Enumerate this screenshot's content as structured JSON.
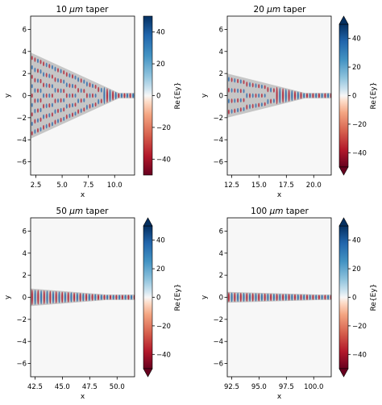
{
  "chart_data": [
    {
      "type": "heatmap",
      "title": "10 μm taper",
      "title_pre": "10 ",
      "title_unit": "μm",
      "title_post": " taper",
      "xlabel": "x",
      "ylabel": "y",
      "xlim": [
        2.0,
        11.9
      ],
      "ylim": [
        -7.2,
        7.2
      ],
      "xticks": [
        2.5,
        5.0,
        7.5,
        10.0
      ],
      "xtick_labels": [
        "2.5",
        "5.0",
        "7.5",
        "10.0"
      ],
      "yticks": [
        -6,
        -4,
        -2,
        0,
        2,
        4,
        6
      ],
      "ytick_labels": [
        "−6",
        "−4",
        "−2",
        "0",
        "2",
        "4",
        "6"
      ],
      "colorbar": {
        "label": "Re{Ey}",
        "ticks": [
          40,
          20,
          0,
          -20,
          -40
        ],
        "tick_labels": [
          "40",
          "20",
          "0",
          "−20",
          "−40"
        ],
        "extend": false
      },
      "taper": {
        "x_start": 2.0,
        "x_end": 10.4,
        "half_width_start": 3.9,
        "half_width_end": 0.25,
        "wavelength": 0.55
      }
    },
    {
      "type": "heatmap",
      "title": "20 μm taper",
      "title_pre": "20 ",
      "title_unit": "μm",
      "title_post": " taper",
      "xlabel": "x",
      "ylabel": "y",
      "xlim": [
        12.1,
        21.6
      ],
      "ylim": [
        -7.2,
        7.2
      ],
      "xticks": [
        12.5,
        15.0,
        17.5,
        20.0
      ],
      "xtick_labels": [
        "12.5",
        "15.0",
        "17.5",
        "20.0"
      ],
      "yticks": [
        -6,
        -4,
        -2,
        0,
        2,
        4,
        6
      ],
      "ytick_labels": [
        "−6",
        "−4",
        "−2",
        "0",
        "2",
        "4",
        "6"
      ],
      "colorbar": {
        "label": "Re{Ey}",
        "ticks": [
          40,
          20,
          0,
          -20,
          -40
        ],
        "tick_labels": [
          "40",
          "20",
          "0",
          "−20",
          "−40"
        ],
        "extend": true
      },
      "taper": {
        "x_start": 12.1,
        "x_end": 19.2,
        "half_width_start": 2.0,
        "half_width_end": 0.25,
        "wavelength": 0.55
      }
    },
    {
      "type": "heatmap",
      "title": "50 μm taper",
      "title_pre": "50 ",
      "title_unit": "μm",
      "title_post": " taper",
      "xlabel": "x",
      "ylabel": "y",
      "xlim": [
        42.1,
        51.6
      ],
      "ylim": [
        -7.2,
        7.2
      ],
      "xticks": [
        42.5,
        45.0,
        47.5,
        50.0
      ],
      "xtick_labels": [
        "42.5",
        "45.0",
        "47.5",
        "50.0"
      ],
      "yticks": [
        -6,
        -4,
        -2,
        0,
        2,
        4,
        6
      ],
      "ytick_labels": [
        "−6",
        "−4",
        "−2",
        "0",
        "2",
        "4",
        "6"
      ],
      "colorbar": {
        "label": "Re{Ey}",
        "ticks": [
          40,
          20,
          0,
          -20,
          -40
        ],
        "tick_labels": [
          "40",
          "20",
          "0",
          "−20",
          "−40"
        ],
        "extend": true
      },
      "taper": {
        "x_start": 42.1,
        "x_end": 49.0,
        "half_width_start": 0.8,
        "half_width_end": 0.25,
        "wavelength": 0.55
      }
    },
    {
      "type": "heatmap",
      "title": "100 μm taper",
      "title_pre": "100 ",
      "title_unit": "μm",
      "title_post": " taper",
      "xlabel": "x",
      "ylabel": "y",
      "xlim": [
        92.1,
        101.6
      ],
      "ylim": [
        -7.2,
        7.2
      ],
      "xticks": [
        92.5,
        95.0,
        97.5,
        100.0
      ],
      "xtick_labels": [
        "92.5",
        "95.0",
        "97.5",
        "100.0"
      ],
      "yticks": [
        -6,
        -4,
        -2,
        0,
        2,
        4,
        6
      ],
      "ytick_labels": [
        "−6",
        "−4",
        "−2",
        "0",
        "2",
        "4",
        "6"
      ],
      "colorbar": {
        "label": "Re{Ey}",
        "ticks": [
          40,
          20,
          0,
          -20,
          -40
        ],
        "tick_labels": [
          "40",
          "20",
          "0",
          "−20",
          "−40"
        ],
        "extend": true
      },
      "taper": {
        "x_start": 92.1,
        "x_end": 100.5,
        "half_width_start": 0.5,
        "half_width_end": 0.25,
        "wavelength": 0.55
      }
    }
  ],
  "colors": {
    "neg_strong": "#67001f",
    "neg_mid": "#d6604d",
    "neg_light": "#fddbc7",
    "neutral": "#f7f7f7",
    "pos_light": "#d1e5f0",
    "pos_mid": "#4393c3",
    "pos_strong": "#053061",
    "waveguide": "#9e9e9e"
  }
}
